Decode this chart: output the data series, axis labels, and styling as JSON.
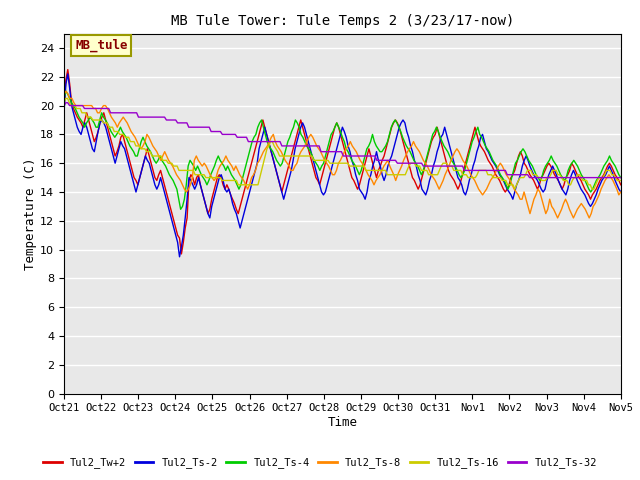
{
  "title": "MB Tule Tower: Tule Temps 2 (3/23/17-now)",
  "xlabel": "Time",
  "ylabel": "Temperature (C)",
  "ylim": [
    0,
    25
  ],
  "yticks": [
    0,
    2,
    4,
    6,
    8,
    10,
    12,
    14,
    16,
    18,
    20,
    22,
    24
  ],
  "bg_color": "#e8e8e8",
  "fig_color": "#ffffff",
  "watermark_text": "MB_tule",
  "watermark_color": "#880000",
  "watermark_bg": "#ffffcc",
  "watermark_border": "#999900",
  "series_names": [
    "Tul2_Tw+2",
    "Tul2_Ts-2",
    "Tul2_Ts-4",
    "Tul2_Ts-8",
    "Tul2_Ts-16",
    "Tul2_Ts-32"
  ],
  "series_colors": [
    "#dd0000",
    "#0000dd",
    "#00cc00",
    "#ff8800",
    "#cccc00",
    "#9900cc"
  ],
  "x_labels": [
    "Oct 21",
    "Oct 22",
    "Oct 23",
    "Oct 24",
    "Oct 25",
    "Oct 26",
    "Oct 27",
    "Oct 28",
    "Oct 29",
    "Oct 30",
    "Oct 31",
    "Nov 1",
    "Nov 2",
    "Nov 3",
    "Nov 4",
    "Nov 5"
  ],
  "Tul2_Tw+2": [
    20.0,
    21.8,
    22.5,
    21.5,
    20.2,
    19.8,
    19.5,
    19.2,
    19.0,
    18.8,
    18.5,
    19.0,
    19.5,
    19.0,
    18.5,
    18.0,
    17.5,
    17.8,
    18.2,
    18.8,
    19.2,
    19.5,
    19.0,
    18.5,
    18.0,
    17.5,
    17.0,
    16.5,
    16.8,
    17.2,
    17.8,
    18.0,
    17.5,
    17.0,
    16.5,
    16.0,
    15.5,
    15.0,
    14.8,
    14.5,
    15.0,
    15.5,
    16.0,
    16.5,
    17.0,
    16.5,
    16.0,
    15.5,
    15.0,
    14.8,
    15.2,
    15.5,
    15.0,
    14.5,
    14.0,
    13.5,
    13.0,
    12.5,
    12.0,
    11.5,
    11.0,
    10.8,
    9.7,
    10.5,
    11.5,
    12.2,
    14.8,
    15.2,
    15.0,
    14.5,
    15.0,
    15.2,
    14.5,
    14.0,
    13.5,
    13.0,
    12.5,
    12.8,
    13.5,
    14.0,
    14.5,
    15.0,
    15.2,
    15.0,
    14.5,
    14.2,
    14.5,
    14.2,
    13.8,
    13.5,
    13.2,
    12.8,
    12.5,
    13.0,
    13.5,
    14.0,
    14.5,
    15.0,
    15.5,
    16.0,
    16.5,
    17.0,
    17.5,
    18.0,
    18.5,
    19.0,
    18.5,
    18.0,
    17.5,
    17.0,
    16.5,
    16.0,
    15.5,
    15.0,
    14.5,
    14.0,
    14.5,
    15.0,
    15.5,
    16.0,
    16.5,
    17.0,
    17.5,
    18.0,
    18.5,
    19.0,
    18.5,
    18.0,
    17.5,
    17.0,
    16.5,
    16.0,
    15.5,
    15.0,
    14.8,
    14.5,
    15.0,
    15.5,
    16.0,
    16.5,
    17.0,
    17.5,
    18.0,
    18.5,
    18.8,
    18.5,
    18.0,
    17.5,
    17.0,
    16.5,
    16.0,
    15.5,
    15.0,
    14.8,
    14.5,
    14.2,
    14.5,
    15.0,
    15.5,
    16.0,
    16.5,
    17.0,
    16.5,
    16.0,
    15.5,
    15.0,
    15.5,
    15.8,
    16.2,
    16.5,
    17.0,
    17.5,
    18.0,
    18.5,
    18.8,
    19.0,
    18.8,
    18.5,
    18.0,
    17.5,
    17.0,
    16.5,
    16.0,
    15.5,
    15.0,
    14.8,
    14.5,
    14.2,
    14.5,
    15.0,
    15.5,
    16.0,
    16.5,
    17.0,
    17.5,
    17.8,
    18.0,
    18.5,
    18.0,
    17.5,
    17.0,
    16.5,
    16.0,
    15.5,
    15.2,
    15.0,
    14.8,
    14.5,
    14.2,
    14.5,
    15.0,
    15.5,
    16.0,
    16.5,
    17.0,
    17.5,
    18.0,
    18.5,
    18.0,
    17.5,
    17.2,
    17.0,
    16.8,
    16.5,
    16.2,
    16.0,
    15.8,
    15.5,
    15.2,
    15.0,
    14.8,
    14.5,
    14.2,
    14.0,
    14.2,
    14.5,
    15.0,
    15.2,
    15.5,
    16.0,
    16.5,
    16.8,
    16.5,
    16.0,
    15.8,
    15.5,
    15.2,
    15.0,
    14.8,
    14.5,
    14.2,
    14.5,
    15.0,
    15.2,
    15.5,
    15.8,
    16.0,
    15.8,
    15.5,
    15.2,
    15.0,
    14.8,
    14.5,
    14.2,
    14.5,
    15.0,
    15.2,
    15.5,
    16.0,
    15.8,
    15.5,
    15.2,
    15.0,
    14.8,
    14.5,
    14.2,
    14.0,
    13.8,
    13.5,
    13.8,
    14.0,
    14.2,
    14.5,
    14.8,
    15.0,
    15.2,
    15.5,
    15.8,
    16.0,
    15.8,
    15.5,
    15.2,
    15.0,
    14.8,
    14.5
  ],
  "Tul2_Ts-2": [
    19.5,
    21.5,
    22.2,
    21.2,
    20.0,
    19.5,
    19.0,
    18.5,
    18.2,
    18.0,
    18.5,
    18.8,
    18.5,
    18.0,
    17.5,
    17.0,
    16.8,
    17.5,
    18.2,
    18.8,
    19.0,
    18.8,
    18.5,
    18.0,
    17.5,
    17.0,
    16.5,
    16.0,
    16.5,
    17.0,
    17.5,
    17.2,
    17.0,
    16.5,
    16.0,
    15.5,
    15.0,
    14.5,
    14.0,
    14.5,
    15.0,
    15.5,
    16.0,
    16.5,
    16.2,
    16.0,
    15.5,
    15.0,
    14.5,
    14.2,
    14.5,
    15.0,
    14.5,
    14.0,
    13.5,
    13.0,
    12.5,
    12.0,
    11.5,
    11.0,
    10.5,
    9.5,
    10.2,
    11.0,
    12.2,
    13.5,
    15.0,
    14.8,
    14.5,
    14.2,
    14.5,
    15.0,
    14.5,
    14.0,
    13.5,
    13.0,
    12.5,
    12.2,
    13.0,
    13.5,
    14.0,
    14.5,
    15.0,
    15.2,
    14.8,
    14.2,
    14.0,
    14.2,
    13.8,
    13.2,
    12.8,
    12.5,
    12.0,
    11.5,
    12.0,
    12.5,
    13.0,
    13.5,
    14.0,
    14.5,
    15.0,
    15.5,
    16.0,
    17.0,
    17.5,
    18.0,
    18.5,
    18.0,
    17.5,
    17.0,
    16.5,
    16.0,
    15.5,
    15.0,
    14.5,
    14.0,
    13.5,
    14.0,
    14.5,
    15.0,
    15.5,
    16.2,
    17.0,
    17.5,
    18.0,
    18.5,
    18.8,
    18.5,
    18.0,
    17.5,
    17.0,
    16.5,
    16.0,
    15.5,
    15.0,
    14.5,
    14.0,
    13.8,
    14.0,
    14.5,
    15.0,
    15.5,
    16.0,
    16.5,
    17.0,
    17.5,
    18.0,
    18.5,
    18.2,
    17.8,
    17.2,
    16.8,
    16.2,
    15.8,
    15.2,
    14.8,
    14.2,
    14.0,
    13.8,
    13.5,
    14.0,
    14.8,
    15.2,
    15.8,
    16.2,
    16.8,
    16.2,
    15.8,
    15.2,
    14.8,
    15.2,
    15.8,
    16.2,
    16.5,
    17.0,
    17.5,
    18.0,
    18.5,
    18.8,
    19.0,
    18.8,
    18.2,
    17.8,
    17.2,
    16.8,
    16.2,
    15.8,
    15.2,
    14.8,
    14.2,
    14.0,
    13.8,
    14.2,
    14.8,
    15.2,
    15.8,
    16.2,
    16.8,
    17.2,
    17.8,
    18.0,
    18.5,
    18.0,
    17.5,
    17.0,
    16.5,
    16.0,
    15.5,
    15.0,
    14.8,
    14.5,
    14.0,
    13.8,
    14.2,
    14.8,
    15.2,
    15.8,
    16.2,
    16.8,
    17.2,
    17.8,
    18.0,
    17.5,
    17.0,
    16.8,
    16.5,
    16.2,
    16.0,
    15.8,
    15.5,
    15.2,
    15.0,
    14.8,
    14.5,
    14.2,
    14.0,
    13.8,
    13.5,
    14.0,
    14.5,
    14.8,
    15.2,
    15.8,
    16.2,
    16.5,
    16.2,
    15.8,
    15.5,
    15.2,
    15.0,
    14.8,
    14.5,
    14.2,
    14.0,
    14.2,
    14.8,
    15.2,
    15.5,
    15.8,
    15.5,
    15.2,
    14.8,
    14.5,
    14.2,
    14.0,
    13.8,
    14.2,
    14.8,
    15.2,
    15.5,
    15.2,
    14.8,
    14.5,
    14.2,
    14.0,
    13.8,
    13.5,
    13.2,
    13.0,
    13.2,
    13.5,
    13.8,
    14.2,
    14.5,
    14.8,
    15.0,
    15.2,
    15.5,
    15.8,
    15.5,
    15.2,
    14.8,
    14.5,
    14.2,
    14.0
  ],
  "Tul2_Ts-4": [
    20.5,
    21.0,
    20.8,
    20.5,
    20.2,
    20.0,
    19.8,
    19.5,
    19.2,
    19.0,
    18.8,
    18.5,
    18.8,
    19.0,
    19.2,
    19.0,
    18.8,
    18.5,
    18.5,
    19.0,
    19.5,
    19.2,
    19.0,
    18.8,
    18.5,
    18.2,
    18.0,
    17.8,
    18.0,
    18.2,
    18.5,
    18.2,
    18.0,
    17.8,
    17.5,
    17.2,
    17.0,
    16.8,
    16.5,
    16.5,
    17.0,
    17.5,
    17.8,
    17.5,
    17.2,
    17.0,
    16.8,
    16.5,
    16.2,
    16.0,
    16.2,
    16.5,
    16.2,
    16.0,
    15.8,
    15.5,
    15.2,
    15.0,
    14.8,
    14.5,
    14.2,
    13.5,
    12.8,
    13.0,
    13.5,
    14.5,
    15.8,
    16.2,
    16.0,
    15.8,
    15.5,
    15.8,
    15.5,
    15.2,
    15.0,
    14.8,
    14.5,
    14.8,
    15.2,
    15.5,
    15.8,
    16.2,
    16.5,
    16.2,
    16.0,
    15.8,
    15.5,
    15.8,
    15.5,
    15.2,
    15.0,
    14.8,
    14.5,
    14.2,
    14.5,
    15.0,
    15.5,
    16.0,
    16.5,
    17.0,
    17.5,
    17.8,
    18.0,
    18.5,
    18.8,
    19.0,
    18.5,
    18.0,
    17.5,
    17.2,
    17.0,
    16.8,
    16.5,
    16.2,
    16.0,
    15.8,
    16.0,
    16.5,
    17.0,
    17.5,
    17.8,
    18.2,
    18.5,
    19.0,
    18.8,
    18.5,
    18.0,
    17.8,
    17.5,
    17.2,
    17.0,
    16.8,
    16.5,
    16.2,
    16.0,
    15.8,
    15.5,
    15.8,
    16.0,
    16.5,
    17.0,
    17.5,
    18.0,
    18.2,
    18.5,
    18.8,
    18.5,
    18.2,
    17.8,
    17.5,
    17.0,
    16.8,
    16.5,
    16.2,
    16.0,
    15.8,
    15.5,
    15.2,
    15.5,
    16.0,
    16.5,
    17.0,
    17.2,
    17.5,
    18.0,
    17.5,
    17.2,
    17.0,
    16.8,
    16.8,
    17.0,
    17.2,
    17.5,
    18.0,
    18.5,
    18.8,
    19.0,
    18.8,
    18.5,
    18.2,
    17.8,
    17.5,
    17.2,
    17.0,
    16.8,
    16.5,
    16.2,
    16.0,
    15.8,
    15.5,
    15.2,
    15.5,
    16.0,
    16.5,
    17.0,
    17.5,
    18.0,
    18.2,
    18.5,
    18.2,
    17.8,
    17.5,
    17.2,
    17.0,
    16.8,
    16.5,
    16.2,
    16.0,
    15.8,
    15.5,
    15.2,
    15.0,
    15.2,
    15.5,
    16.0,
    16.5,
    17.0,
    17.5,
    17.8,
    18.2,
    18.5,
    18.0,
    17.8,
    17.5,
    17.2,
    17.0,
    16.8,
    16.5,
    16.2,
    16.0,
    15.8,
    15.5,
    15.2,
    15.0,
    14.8,
    14.5,
    14.2,
    14.5,
    15.0,
    15.5,
    16.0,
    16.2,
    16.5,
    16.8,
    17.0,
    16.8,
    16.5,
    16.2,
    16.0,
    15.8,
    15.5,
    15.2,
    15.0,
    14.8,
    15.0,
    15.5,
    15.8,
    16.0,
    16.2,
    16.5,
    16.2,
    16.0,
    15.8,
    15.5,
    15.2,
    15.0,
    14.8,
    15.0,
    15.5,
    15.8,
    16.0,
    16.2,
    16.0,
    15.8,
    15.5,
    15.2,
    15.0,
    14.8,
    14.5,
    14.2,
    14.0,
    14.2,
    14.5,
    14.8,
    15.0,
    15.2,
    15.5,
    15.8,
    16.0,
    16.2,
    16.5,
    16.2,
    16.0,
    15.8,
    15.5,
    15.2,
    15.0
  ],
  "Tul2_Ts-8": [
    20.8,
    21.0,
    20.8,
    20.5,
    20.5,
    20.2,
    20.0,
    20.0,
    20.0,
    20.0,
    20.0,
    20.0,
    20.0,
    20.0,
    20.0,
    19.8,
    19.8,
    19.5,
    19.5,
    19.8,
    20.0,
    20.0,
    19.8,
    19.5,
    19.2,
    19.0,
    18.8,
    18.5,
    18.8,
    19.0,
    19.2,
    19.0,
    18.8,
    18.5,
    18.2,
    18.0,
    17.8,
    17.5,
    17.2,
    17.0,
    17.2,
    17.5,
    18.0,
    17.8,
    17.5,
    17.2,
    17.0,
    16.8,
    16.5,
    16.2,
    16.5,
    16.8,
    16.5,
    16.2,
    16.0,
    15.8,
    15.5,
    15.2,
    15.0,
    14.8,
    14.5,
    14.2,
    14.0,
    14.2,
    14.5,
    15.0,
    16.2,
    16.5,
    16.2,
    16.0,
    15.8,
    16.0,
    15.8,
    15.5,
    15.2,
    15.0,
    14.8,
    15.0,
    15.5,
    15.8,
    16.0,
    16.2,
    16.5,
    16.2,
    16.0,
    15.8,
    15.5,
    15.8,
    15.5,
    15.2,
    15.0,
    14.8,
    14.5,
    14.2,
    14.5,
    15.0,
    15.2,
    15.5,
    16.0,
    16.2,
    16.5,
    16.8,
    17.0,
    17.2,
    17.5,
    17.8,
    18.0,
    17.5,
    17.2,
    17.0,
    16.8,
    16.5,
    16.2,
    16.0,
    15.8,
    15.5,
    15.5,
    15.8,
    16.0,
    16.5,
    16.8,
    17.0,
    17.2,
    17.5,
    17.8,
    18.0,
    17.8,
    17.5,
    17.2,
    17.0,
    16.8,
    16.5,
    16.2,
    16.0,
    15.8,
    15.5,
    15.2,
    15.2,
    15.5,
    16.0,
    16.2,
    16.5,
    16.8,
    17.0,
    17.2,
    17.5,
    17.2,
    17.0,
    16.8,
    16.5,
    16.2,
    16.0,
    15.8,
    15.5,
    15.2,
    15.0,
    14.8,
    14.5,
    14.8,
    15.0,
    15.2,
    15.5,
    15.8,
    16.0,
    16.2,
    15.8,
    15.5,
    15.2,
    14.8,
    15.2,
    15.5,
    15.8,
    16.2,
    16.5,
    16.8,
    17.0,
    17.2,
    17.5,
    17.2,
    17.0,
    16.8,
    16.5,
    16.2,
    16.0,
    15.8,
    15.5,
    15.2,
    15.0,
    14.8,
    14.5,
    14.2,
    14.5,
    14.8,
    15.2,
    15.5,
    15.8,
    16.2,
    16.5,
    16.8,
    17.0,
    16.8,
    16.5,
    16.2,
    16.0,
    15.8,
    15.5,
    15.2,
    15.0,
    14.8,
    14.5,
    14.2,
    14.0,
    13.8,
    14.0,
    14.2,
    14.5,
    14.8,
    15.0,
    15.2,
    15.5,
    15.8,
    16.0,
    15.8,
    15.5,
    15.2,
    15.0,
    14.8,
    14.5,
    14.2,
    14.0,
    13.8,
    13.5,
    13.5,
    14.0,
    13.5,
    13.0,
    12.5,
    13.0,
    13.5,
    13.8,
    14.2,
    14.0,
    13.5,
    13.0,
    12.5,
    12.8,
    13.5,
    13.0,
    12.8,
    12.5,
    12.2,
    12.5,
    12.8,
    13.2,
    13.5,
    13.2,
    12.8,
    12.5,
    12.2,
    12.5,
    12.8,
    13.0,
    13.2,
    13.0,
    12.8,
    12.5,
    12.2,
    12.5,
    13.0,
    13.2,
    13.5,
    13.8,
    14.2,
    14.5,
    14.8,
    15.0,
    15.2,
    15.0,
    14.8,
    14.5,
    14.2,
    13.8,
    14.0
  ],
  "Tul2_Ts-16": [
    20.2,
    20.5,
    20.5,
    20.2,
    20.0,
    20.0,
    20.0,
    19.8,
    19.8,
    19.8,
    19.5,
    19.5,
    19.5,
    19.2,
    19.2,
    19.2,
    19.0,
    19.0,
    19.0,
    19.0,
    19.0,
    19.0,
    18.8,
    18.8,
    18.8,
    18.5,
    18.5,
    18.5,
    18.2,
    18.2,
    18.2,
    18.0,
    18.0,
    18.0,
    17.8,
    17.8,
    17.8,
    17.5,
    17.5,
    17.5,
    17.2,
    17.2,
    17.2,
    17.0,
    17.0,
    17.0,
    16.8,
    16.8,
    16.8,
    16.5,
    16.5,
    16.5,
    16.5,
    16.5,
    16.5,
    16.2,
    16.2,
    16.2,
    16.0,
    16.0,
    16.0,
    15.8,
    15.8,
    15.8,
    15.5,
    15.5,
    15.5,
    15.5,
    15.5,
    15.5,
    15.5,
    15.5,
    15.5,
    15.2,
    15.2,
    15.2,
    15.2,
    15.2,
    15.2,
    15.0,
    15.0,
    15.0,
    15.0,
    15.0,
    15.0,
    15.0,
    15.0,
    15.0,
    14.8,
    14.8,
    14.8,
    14.8,
    14.8,
    14.8,
    14.8,
    14.8,
    14.8,
    14.5,
    14.5,
    14.5,
    14.5,
    14.5,
    14.5,
    14.5,
    14.5,
    14.5,
    14.5,
    14.5,
    14.5,
    15.0,
    15.5,
    16.0,
    16.5,
    17.0,
    17.2,
    17.5,
    17.5,
    17.2,
    17.0,
    16.8,
    16.5,
    16.5,
    16.5,
    16.5,
    16.5,
    16.5,
    16.5,
    16.5,
    16.5,
    16.5,
    16.5,
    16.5,
    16.5,
    16.5,
    16.5,
    16.5,
    16.5,
    16.5,
    16.5,
    16.2,
    16.2,
    16.2,
    16.2,
    16.2,
    16.2,
    16.2,
    16.2,
    16.2,
    16.0,
    16.0,
    16.0,
    16.0,
    16.0,
    16.0,
    16.0,
    16.0,
    16.0,
    16.0,
    16.0,
    15.8,
    15.8,
    15.8,
    15.8,
    15.8,
    15.8,
    15.8,
    15.8,
    15.8,
    15.5,
    15.5,
    15.5,
    15.5,
    15.5,
    15.5,
    15.5,
    15.5,
    15.5,
    15.5,
    15.5,
    15.5,
    15.2,
    15.2,
    15.2,
    15.2,
    15.2,
    15.2,
    15.2,
    15.2,
    15.2,
    15.2,
    15.2,
    15.5,
    15.8,
    16.0,
    16.0,
    16.0,
    15.8,
    15.8,
    15.8,
    15.5,
    15.5,
    15.5,
    15.5,
    15.2,
    15.2,
    15.2,
    15.2,
    15.2,
    15.2,
    15.5,
    15.8,
    16.0,
    16.0,
    16.0,
    15.8,
    15.8,
    15.8,
    15.5,
    15.5,
    15.5,
    15.5,
    15.5,
    15.2,
    15.2,
    15.2,
    15.0,
    15.0,
    15.0,
    15.0,
    15.0,
    15.2,
    15.5,
    15.5,
    15.5,
    15.5,
    15.5,
    15.2,
    15.2,
    15.2,
    15.0,
    15.0,
    15.0,
    15.0,
    15.0,
    14.8,
    14.8,
    14.8,
    14.5,
    14.5,
    14.5,
    14.5,
    14.2,
    14.5,
    14.8,
    15.0,
    15.0,
    15.0,
    15.2,
    15.5,
    15.5,
    15.5,
    15.2,
    15.2,
    15.2,
    15.0,
    15.0,
    14.8,
    14.8,
    14.8,
    15.0,
    15.0,
    15.2,
    15.5,
    15.5,
    15.5,
    15.2,
    15.2,
    15.0,
    14.8,
    14.8,
    14.8,
    14.5,
    14.5,
    14.8,
    15.0,
    15.0,
    15.2,
    15.2,
    15.0,
    14.8,
    14.8,
    14.8,
    14.5,
    14.5,
    14.2,
    14.2,
    14.5,
    14.8,
    15.0,
    15.0,
    15.0,
    15.2,
    15.5,
    15.5,
    15.5,
    15.2,
    15.2,
    15.0,
    14.8,
    14.8,
    14.8
  ],
  "Tul2_Ts-32": [
    20.0,
    20.2,
    20.2,
    20.0,
    20.0,
    20.0,
    20.0,
    20.0,
    20.0,
    20.0,
    20.0,
    19.8,
    19.8,
    19.8,
    19.8,
    19.8,
    19.8,
    19.8,
    19.8,
    19.8,
    19.8,
    19.8,
    19.8,
    19.8,
    19.8,
    19.5,
    19.5,
    19.5,
    19.5,
    19.5,
    19.5,
    19.5,
    19.5,
    19.5,
    19.5,
    19.5,
    19.5,
    19.5,
    19.5,
    19.5,
    19.2,
    19.2,
    19.2,
    19.2,
    19.2,
    19.2,
    19.2,
    19.2,
    19.2,
    19.2,
    19.2,
    19.2,
    19.2,
    19.2,
    19.2,
    19.0,
    19.0,
    19.0,
    19.0,
    19.0,
    19.0,
    18.8,
    18.8,
    18.8,
    18.8,
    18.8,
    18.8,
    18.5,
    18.5,
    18.5,
    18.5,
    18.5,
    18.5,
    18.5,
    18.5,
    18.5,
    18.5,
    18.5,
    18.5,
    18.2,
    18.2,
    18.2,
    18.2,
    18.2,
    18.2,
    18.0,
    18.0,
    18.0,
    18.0,
    18.0,
    18.0,
    18.0,
    18.0,
    17.8,
    17.8,
    17.8,
    17.8,
    17.8,
    17.8,
    17.5,
    17.5,
    17.5,
    17.5,
    17.5,
    17.5,
    17.5,
    17.5,
    17.5,
    17.5,
    17.5,
    17.5,
    17.5,
    17.5,
    17.5,
    17.5,
    17.5,
    17.5,
    17.2,
    17.2,
    17.2,
    17.2,
    17.2,
    17.2,
    17.2,
    17.2,
    17.2,
    17.2,
    17.2,
    17.2,
    17.2,
    17.2,
    17.2,
    17.2,
    17.2,
    17.2,
    17.2,
    17.2,
    17.2,
    16.8,
    16.8,
    16.8,
    16.8,
    16.8,
    16.8,
    16.8,
    16.8,
    16.8,
    16.8,
    16.8,
    16.8,
    16.5,
    16.5,
    16.5,
    16.5,
    16.5,
    16.5,
    16.5,
    16.5,
    16.5,
    16.5,
    16.5,
    16.5,
    16.5,
    16.5,
    16.5,
    16.5,
    16.5,
    16.5,
    16.2,
    16.2,
    16.2,
    16.2,
    16.2,
    16.2,
    16.2,
    16.2,
    16.2,
    16.2,
    16.2,
    16.0,
    16.0,
    16.0,
    16.0,
    16.0,
    16.0,
    16.0,
    16.0,
    16.0,
    16.0,
    16.0,
    16.0,
    16.0,
    16.0,
    15.8,
    15.8,
    15.8,
    15.8,
    15.8,
    15.8,
    15.8,
    15.8,
    15.8,
    15.8,
    15.8,
    15.8,
    15.8,
    15.8,
    15.8,
    15.8,
    15.8,
    15.8,
    15.8,
    15.8,
    15.8,
    15.8,
    15.5,
    15.5,
    15.5,
    15.5,
    15.5,
    15.5,
    15.5,
    15.5,
    15.5,
    15.5,
    15.5,
    15.5,
    15.5,
    15.5,
    15.5,
    15.5,
    15.5,
    15.5,
    15.5,
    15.5,
    15.5,
    15.5,
    15.5,
    15.2,
    15.2,
    15.2,
    15.2,
    15.2,
    15.2,
    15.2,
    15.2,
    15.2,
    15.2,
    15.2,
    15.2,
    15.0,
    15.0,
    15.0,
    15.0,
    15.0,
    15.0,
    15.0,
    15.0,
    15.0,
    15.0,
    15.0,
    15.0,
    15.0,
    15.0,
    15.0,
    15.0,
    15.0,
    15.0,
    15.0,
    15.0,
    15.0,
    15.0,
    15.0,
    15.0,
    15.0,
    15.0,
    15.0,
    15.0,
    15.0,
    15.0,
    15.0,
    15.0,
    15.0,
    15.0,
    15.0,
    15.0,
    15.0,
    15.0,
    15.0,
    15.0,
    15.0,
    15.0,
    15.0,
    15.0,
    15.0,
    15.0,
    15.0,
    15.0,
    15.0,
    15.0
  ]
}
